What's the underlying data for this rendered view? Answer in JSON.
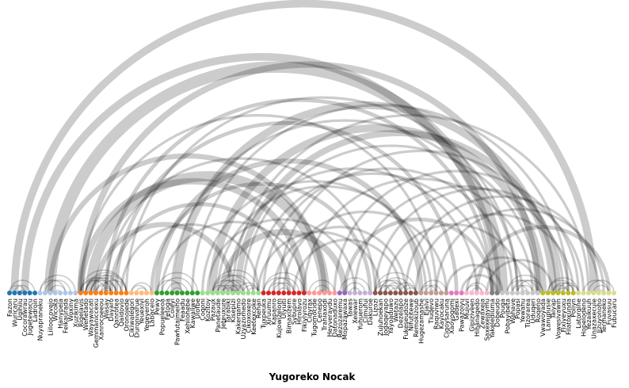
{
  "title": "Yugoreko Nocak",
  "arc_color": "#000000",
  "group_colors": [
    "#1f77b4",
    "#aec7e8",
    "#ff7f0e",
    "#ffbb78",
    "#2ca02c",
    "#98df8a",
    "#d62728",
    "#ff9896",
    "#9467bd",
    "#c5b0d5",
    "#8c564b",
    "#c49c94",
    "#e377c2",
    "#f7b6d2",
    "#7f7f7f",
    "#c7c7c7",
    "#bcbd22",
    "#dbdb8d"
  ],
  "nodes": [
    {
      "name": "Fazon",
      "group": 0
    },
    {
      "name": "Wuricaru",
      "group": 0
    },
    {
      "name": "Ugihiiu",
      "group": 0
    },
    {
      "name": "Cocorawrau",
      "group": 0
    },
    {
      "name": "Jugetewacu",
      "group": 0
    },
    {
      "name": "Ladroin",
      "group": 0
    },
    {
      "name": "Nuyapraneku",
      "group": 1
    },
    {
      "name": "",
      "group": 1
    },
    {
      "name": "Liiloocovejo",
      "group": 1
    },
    {
      "name": "Wicoka",
      "group": 1
    },
    {
      "name": "Hanypela",
      "group": 1
    },
    {
      "name": "Feikaurada",
      "group": 1
    },
    {
      "name": "Woxiny",
      "group": 1
    },
    {
      "name": "Xuzikima",
      "group": 1
    },
    {
      "name": "Rigelavis",
      "group": 2
    },
    {
      "name": "Wenetado",
      "group": 2
    },
    {
      "name": "Wayawacati",
      "group": 2
    },
    {
      "name": "Gemmaniccexu",
      "group": 2
    },
    {
      "name": "Xanrocoeeou",
      "group": 2
    },
    {
      "name": "Wasay",
      "group": 2
    },
    {
      "name": "Dayaro",
      "group": 2
    },
    {
      "name": "Qanrotea",
      "group": 2
    },
    {
      "name": "Qaidovio",
      "group": 2
    },
    {
      "name": "Oronojede",
      "group": 2
    },
    {
      "name": "Cikiwalegori",
      "group": 3
    },
    {
      "name": "Duronivarue",
      "group": 3
    },
    {
      "name": "Yeuexivi",
      "group": 3
    },
    {
      "name": "Yegeyeroh",
      "group": 3
    },
    {
      "name": "Labacelo",
      "group": 3
    },
    {
      "name": "Pewy",
      "group": 4
    },
    {
      "name": "Popueleeoa",
      "group": 4
    },
    {
      "name": "Fetoga",
      "group": 4
    },
    {
      "name": "Coleyi",
      "group": 4
    },
    {
      "name": "Pawfutaimeiho",
      "group": 4
    },
    {
      "name": "Feaadu",
      "group": 4
    },
    {
      "name": "Xehilohebe",
      "group": 4
    },
    {
      "name": "Kawaliwe",
      "group": 4
    },
    {
      "name": "Ulofbe",
      "group": 4
    },
    {
      "name": "Coqoni",
      "group": 5
    },
    {
      "name": "Kozitoy",
      "group": 5
    },
    {
      "name": "Pazaux",
      "group": 5
    },
    {
      "name": "Panetaude",
      "group": 5
    },
    {
      "name": "Jeteuxure",
      "group": 5
    },
    {
      "name": "Tarabiki",
      "group": 5
    },
    {
      "name": "Kisepizi",
      "group": 5
    },
    {
      "name": "Kakerqamo",
      "group": 5
    },
    {
      "name": "Uzyazomedo",
      "group": 5
    },
    {
      "name": "Cikoxoxere",
      "group": 5
    },
    {
      "name": "Keetexcoke",
      "group": 5
    },
    {
      "name": "Rehan",
      "group": 5
    },
    {
      "name": "Tuxpeuka",
      "group": 6
    },
    {
      "name": "Xiruumu",
      "group": 6
    },
    {
      "name": "Kapanro",
      "group": 6
    },
    {
      "name": "Kujowizelom",
      "group": 6
    },
    {
      "name": "Ulyuiti",
      "group": 6
    },
    {
      "name": "Bimaxizem",
      "group": 6
    },
    {
      "name": "Sybupre",
      "group": 6
    },
    {
      "name": "Hirolavo",
      "group": 6
    },
    {
      "name": "Fikiylyrozu",
      "group": 6
    },
    {
      "name": "Ciqyrax",
      "group": 7
    },
    {
      "name": "Tugomocide",
      "group": 7
    },
    {
      "name": "Cenepo",
      "group": 7
    },
    {
      "name": "Trahiaxodi",
      "group": 7
    },
    {
      "name": "Heyveraydu",
      "group": 7
    },
    {
      "name": "Datonaduxo",
      "group": 7
    },
    {
      "name": "Rezozaremu",
      "group": 8
    },
    {
      "name": "Mopazawaxa",
      "group": 8
    },
    {
      "name": "Tawas",
      "group": 9
    },
    {
      "name": "Xeiewar",
      "group": 9
    },
    {
      "name": "Yuhuerom",
      "group": 9
    },
    {
      "name": "Cimufui",
      "group": 9
    },
    {
      "name": "Dakuroe",
      "group": 9
    },
    {
      "name": "Lizozi",
      "group": 10
    },
    {
      "name": "Zujuhoekan",
      "group": 10
    },
    {
      "name": "Jogaqeyapo",
      "group": 10
    },
    {
      "name": "Yayoaduwo",
      "group": 10
    },
    {
      "name": "Wetazu",
      "group": 10
    },
    {
      "name": "Dezelapo",
      "group": 10
    },
    {
      "name": "Fukeseudoze",
      "group": 10
    },
    {
      "name": "Nifutitewe",
      "group": 10
    },
    {
      "name": "Remokizoub",
      "group": 10
    },
    {
      "name": "Hugezamashe",
      "group": 11
    },
    {
      "name": "Ejalvi",
      "group": 11
    },
    {
      "name": "Tiuqevo",
      "group": 11
    },
    {
      "name": "Raquviwu",
      "group": 11
    },
    {
      "name": "Kayocaku",
      "group": 11
    },
    {
      "name": "Ciqoysaruna",
      "group": 11
    },
    {
      "name": "Xaoyogomi",
      "group": 12
    },
    {
      "name": "Gadexi",
      "group": 12
    },
    {
      "name": "Pawazoiyu",
      "group": 12
    },
    {
      "name": "Mujuvi",
      "group": 13
    },
    {
      "name": "Gipiziveen",
      "group": 13
    },
    {
      "name": "Hihanagedo",
      "group": 13
    },
    {
      "name": "Zewaxeja",
      "group": 13
    },
    {
      "name": "Saxexejaymu",
      "group": 13
    },
    {
      "name": "Yakelediuma",
      "group": 14
    },
    {
      "name": "Dobeudo",
      "group": 14
    },
    {
      "name": "Pouga",
      "group": 15
    },
    {
      "name": "Pobayibeta",
      "group": 15
    },
    {
      "name": "Wahave",
      "group": 15
    },
    {
      "name": "Popasi",
      "group": 15
    },
    {
      "name": "Yewahu",
      "group": 15
    },
    {
      "name": "Tizorarea",
      "group": 15
    },
    {
      "name": "Uduqeri",
      "group": 15
    },
    {
      "name": "Roqeno",
      "group": 15
    },
    {
      "name": "Vwawoyada",
      "group": 16
    },
    {
      "name": "Lanupusie",
      "group": 16
    },
    {
      "name": "Taiyap",
      "group": 16
    },
    {
      "name": "Vowesivawin",
      "group": 16
    },
    {
      "name": "Fixiyeyuxu",
      "group": 16
    },
    {
      "name": "Filatoxunda",
      "group": 16
    },
    {
      "name": "Poliyn",
      "group": 16
    },
    {
      "name": "Latorqine",
      "group": 17
    },
    {
      "name": "Hopelodeno",
      "group": 17
    },
    {
      "name": "Yezaikuuh",
      "group": 17
    },
    {
      "name": "Unazaxecule",
      "group": 17
    },
    {
      "name": "Jizuyonoho",
      "group": 17
    },
    {
      "name": "Termaneko",
      "group": 17
    },
    {
      "name": "Fuvasuu",
      "group": 17
    },
    {
      "name": "Fubucaru",
      "group": 17
    }
  ],
  "links": [
    [
      1,
      115,
      6
    ],
    [
      3,
      121,
      12
    ],
    [
      3,
      96,
      6
    ],
    [
      8,
      97,
      9
    ],
    [
      8,
      62,
      4
    ],
    [
      14,
      58,
      5
    ],
    [
      14,
      104,
      5
    ],
    [
      14,
      84,
      2
    ],
    [
      16,
      62,
      8
    ],
    [
      17,
      44,
      4
    ],
    [
      19,
      72,
      2
    ],
    [
      19,
      95,
      3
    ],
    [
      20,
      55,
      3
    ],
    [
      21,
      88,
      3
    ],
    [
      22,
      49,
      2
    ],
    [
      23,
      100,
      2
    ],
    [
      28,
      71,
      3
    ],
    [
      29,
      81,
      4
    ],
    [
      30,
      58,
      2
    ],
    [
      32,
      100,
      2
    ],
    [
      33,
      107,
      6
    ],
    [
      36,
      110,
      2
    ],
    [
      38,
      82,
      2
    ],
    [
      39,
      68,
      2
    ],
    [
      40,
      105,
      6
    ],
    [
      41,
      83,
      2
    ],
    [
      42,
      66,
      5
    ],
    [
      43,
      92,
      2
    ],
    [
      44,
      114,
      2
    ],
    [
      45,
      108,
      5
    ],
    [
      46,
      104,
      2
    ],
    [
      48,
      95,
      2
    ],
    [
      49,
      73,
      2
    ],
    [
      50,
      99,
      2
    ],
    [
      52,
      78,
      2
    ],
    [
      53,
      109,
      2
    ],
    [
      54,
      86,
      2
    ],
    [
      55,
      121,
      6
    ],
    [
      56,
      77,
      2
    ],
    [
      58,
      103,
      2
    ],
    [
      60,
      121,
      2
    ],
    [
      64,
      112,
      2
    ],
    [
      66,
      95,
      3
    ],
    [
      68,
      110,
      2
    ],
    [
      72,
      113,
      2
    ],
    [
      74,
      101,
      2
    ],
    [
      76,
      121,
      3
    ],
    [
      78,
      116,
      2
    ],
    [
      80,
      111,
      2
    ],
    [
      84,
      117,
      2
    ],
    [
      86,
      97,
      2
    ],
    [
      88,
      121,
      2
    ],
    [
      89,
      96,
      2
    ],
    [
      90,
      104,
      2
    ],
    [
      92,
      118,
      3
    ],
    [
      94,
      107,
      2
    ],
    [
      15,
      23,
      1
    ],
    [
      16,
      22,
      1
    ],
    [
      17,
      21,
      1
    ],
    [
      18,
      20,
      1
    ],
    [
      14,
      23,
      1
    ],
    [
      15,
      22,
      1
    ],
    [
      16,
      21,
      1
    ],
    [
      17,
      20,
      1
    ],
    [
      18,
      19,
      1
    ],
    [
      19,
      20,
      1
    ],
    [
      14,
      19,
      1
    ],
    [
      14,
      20,
      1
    ],
    [
      15,
      20,
      1
    ],
    [
      15,
      21,
      1
    ],
    [
      16,
      23,
      1
    ],
    [
      18,
      23,
      1
    ],
    [
      40,
      49,
      1
    ],
    [
      41,
      48,
      1
    ],
    [
      42,
      47,
      1
    ],
    [
      43,
      46,
      1
    ],
    [
      44,
      45,
      1
    ],
    [
      40,
      47,
      1
    ],
    [
      41,
      46,
      1
    ],
    [
      42,
      45,
      1
    ],
    [
      43,
      44,
      1
    ],
    [
      40,
      45,
      1
    ],
    [
      41,
      44,
      1
    ],
    [
      42,
      44,
      1
    ],
    [
      40,
      43,
      1
    ],
    [
      45,
      49,
      1
    ],
    [
      46,
      49,
      1
    ],
    [
      47,
      49,
      1
    ],
    [
      72,
      80,
      1
    ],
    [
      73,
      79,
      1
    ],
    [
      74,
      78,
      1
    ],
    [
      75,
      77,
      1
    ],
    [
      72,
      77,
      1
    ],
    [
      73,
      76,
      1
    ],
    [
      74,
      77,
      1
    ],
    [
      72,
      75,
      1
    ],
    [
      73,
      78,
      1
    ],
    [
      76,
      80,
      1
    ],
    [
      77,
      80,
      1
    ],
    [
      78,
      80,
      1
    ],
    [
      98,
      105,
      1
    ],
    [
      99,
      104,
      1
    ],
    [
      100,
      103,
      1
    ],
    [
      101,
      102,
      1
    ],
    [
      98,
      103,
      1
    ],
    [
      99,
      102,
      1
    ],
    [
      100,
      105,
      1
    ],
    [
      106,
      112,
      1
    ],
    [
      107,
      111,
      1
    ],
    [
      108,
      110,
      1
    ],
    [
      106,
      111,
      1
    ],
    [
      107,
      110,
      1
    ],
    [
      108,
      112,
      1
    ],
    [
      109,
      112,
      1
    ],
    [
      50,
      58,
      1
    ],
    [
      51,
      57,
      1
    ],
    [
      52,
      56,
      1
    ],
    [
      53,
      55,
      1
    ],
    [
      50,
      56,
      1
    ],
    [
      51,
      55,
      1
    ],
    [
      29,
      37,
      1
    ],
    [
      30,
      36,
      1
    ],
    [
      31,
      35,
      1
    ],
    [
      32,
      34,
      1
    ],
    [
      29,
      34,
      1
    ],
    [
      113,
      120,
      1
    ],
    [
      114,
      119,
      1
    ],
    [
      115,
      118,
      1
    ],
    [
      116,
      117,
      1
    ],
    [
      113,
      118,
      1
    ],
    [
      6,
      13,
      1
    ],
    [
      7,
      12,
      1
    ],
    [
      8,
      11,
      1
    ],
    [
      9,
      10,
      1
    ],
    [
      6,
      11,
      1
    ],
    [
      0,
      5,
      1
    ],
    [
      1,
      4,
      1
    ],
    [
      2,
      3,
      1
    ],
    [
      0,
      3,
      1
    ],
    [
      24,
      28,
      1
    ],
    [
      25,
      27,
      1
    ],
    [
      24,
      27,
      1
    ],
    [
      59,
      64,
      1
    ],
    [
      60,
      63,
      1
    ],
    [
      61,
      62,
      1
    ],
    [
      81,
      86,
      1
    ],
    [
      82,
      85,
      1
    ],
    [
      83,
      84,
      1
    ],
    [
      81,
      84,
      1
    ],
    [
      90,
      94,
      1
    ],
    [
      91,
      93,
      1
    ],
    [
      90,
      93,
      1
    ],
    [
      65,
      71,
      1
    ],
    [
      66,
      70,
      1
    ],
    [
      67,
      69,
      1
    ]
  ]
}
